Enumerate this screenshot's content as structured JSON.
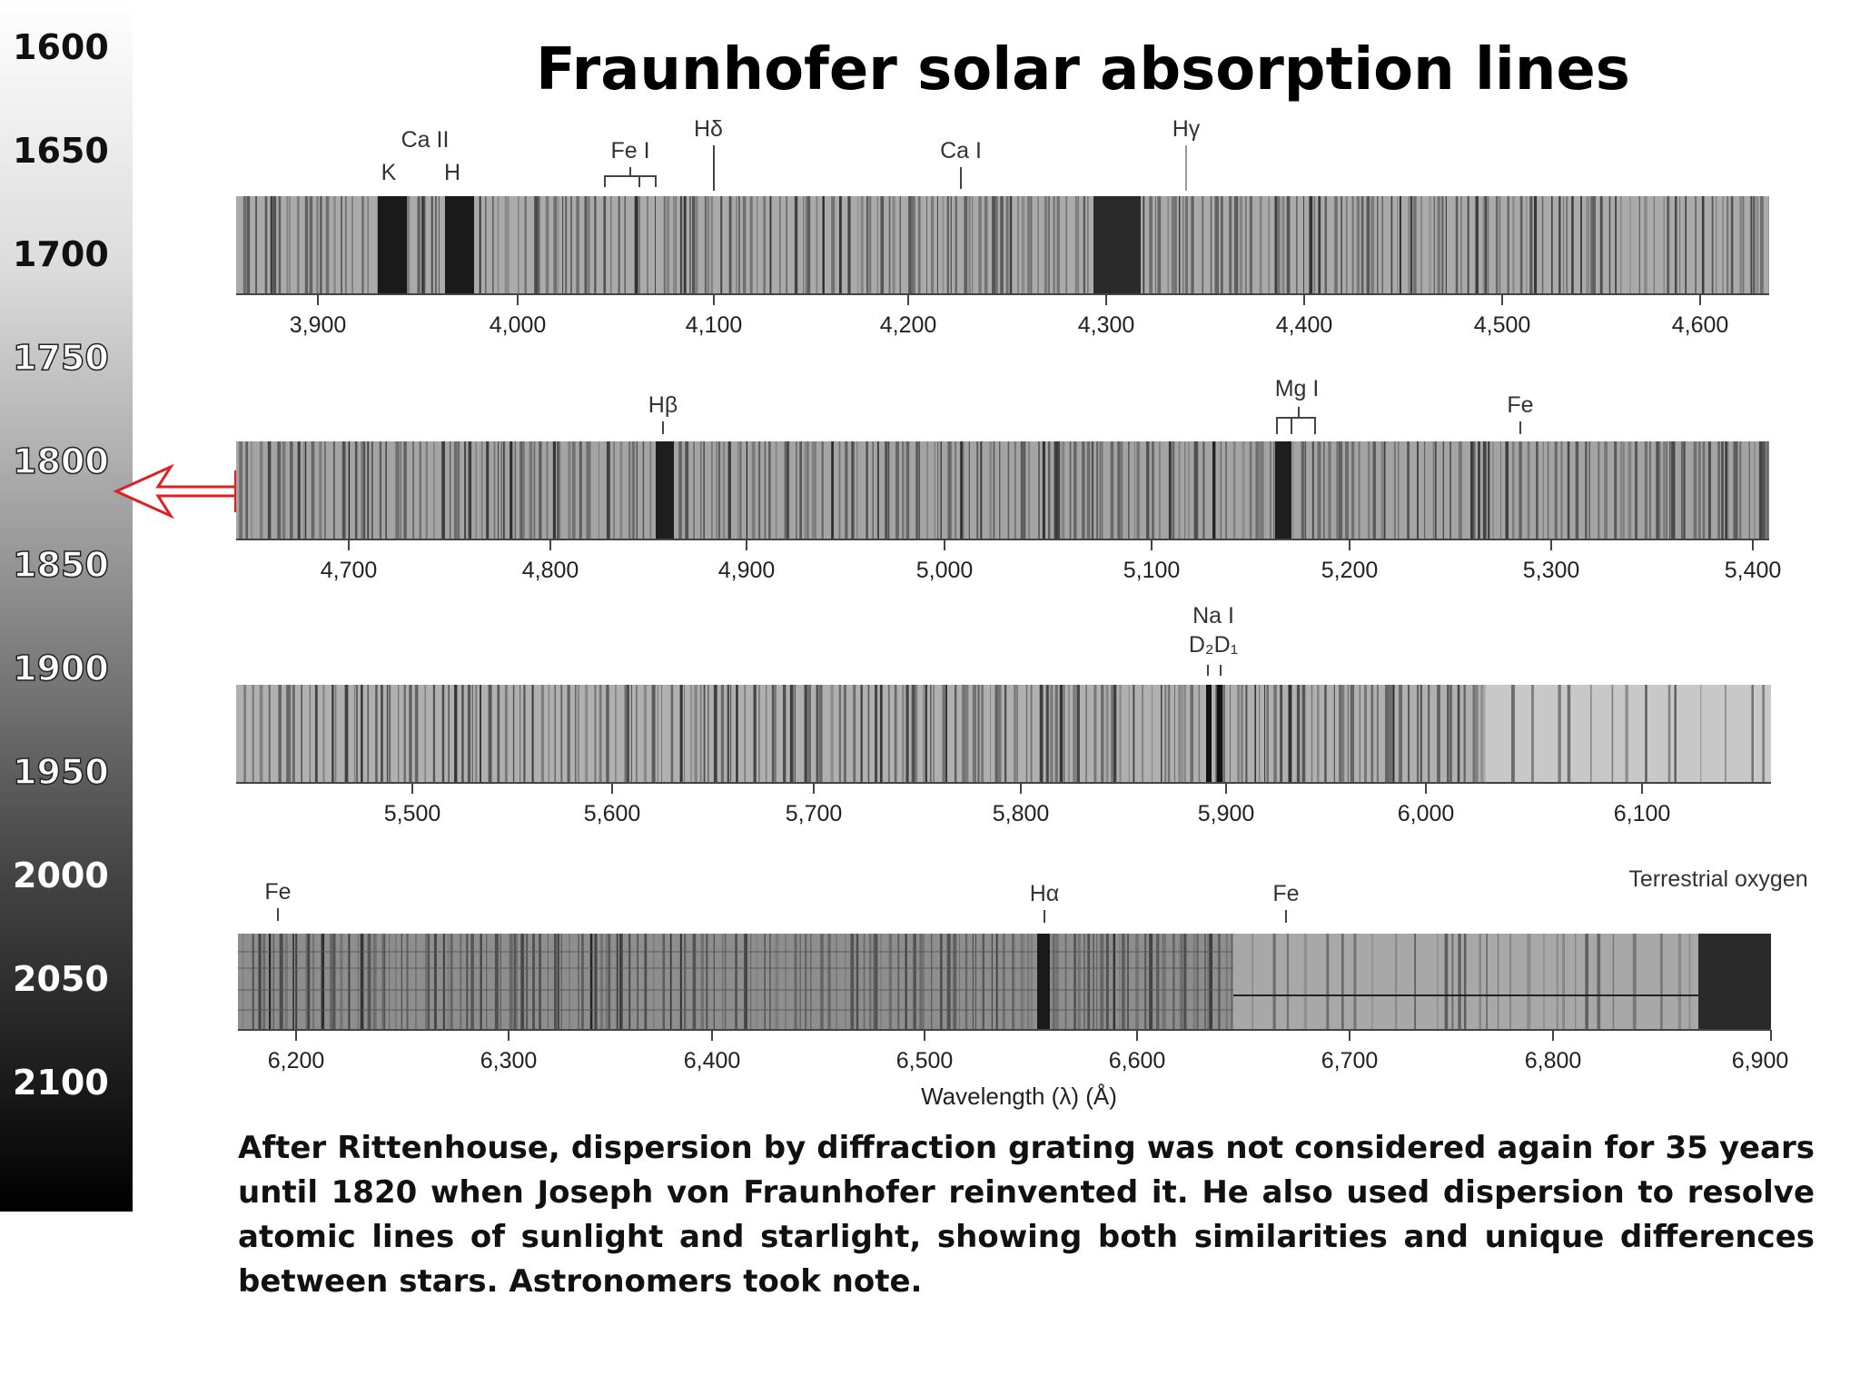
{
  "timeline": {
    "years": [
      "1600",
      "1650",
      "1700",
      "1750",
      "1800",
      "1850",
      "1900",
      "1950",
      "2000",
      "2050",
      "2100"
    ],
    "current": "1820",
    "arrow_color": "#e02020"
  },
  "title": "Fraunhofer solar absorption lines",
  "spectrum_rows": [
    {
      "tick_labels": [
        "3,900",
        "4,000",
        "4,100",
        "4,200",
        "4,300",
        "4,400",
        "4,500",
        "4,600"
      ],
      "labels": [
        {
          "text": "Ca II"
        },
        {
          "text": "K"
        },
        {
          "text": "H"
        },
        {
          "text": "Fe I"
        },
        {
          "text": "Hδ"
        },
        {
          "text": "Ca I"
        },
        {
          "text": "Hγ"
        }
      ]
    },
    {
      "tick_labels": [
        "4,700",
        "4,800",
        "4,900",
        "5,000",
        "5,100",
        "5,200",
        "5,300",
        "5,400"
      ],
      "labels": [
        {
          "text": "Hβ"
        },
        {
          "text": "Mg I"
        },
        {
          "text": "Fe"
        }
      ]
    },
    {
      "tick_labels": [
        "5,500",
        "5,600",
        "5,700",
        "5,800",
        "5,900",
        "6,000",
        "6,100"
      ],
      "labels": [
        {
          "text": "Na I"
        },
        {
          "text": "D₂D₁"
        }
      ]
    },
    {
      "tick_labels": [
        "6,200",
        "6,300",
        "6,400",
        "6,500",
        "6,600",
        "6,700",
        "6,800",
        "6,900"
      ],
      "labels": [
        {
          "text": "Fe"
        },
        {
          "text": "Hα"
        },
        {
          "text": "Fe"
        },
        {
          "text": "Terrestrial oxygen"
        }
      ]
    }
  ],
  "axis_label": "Wavelength (λ) (Å)",
  "caption": "After Rittenhouse, dispersion by diffraction grating was not considered again for 35 years until 1820 when Joseph von Fraunhofer reinvented it. He also used dispersion to resolve atomic lines of sunlight and starlight, showing both similarities and unique differences between stars. Astronomers took note."
}
